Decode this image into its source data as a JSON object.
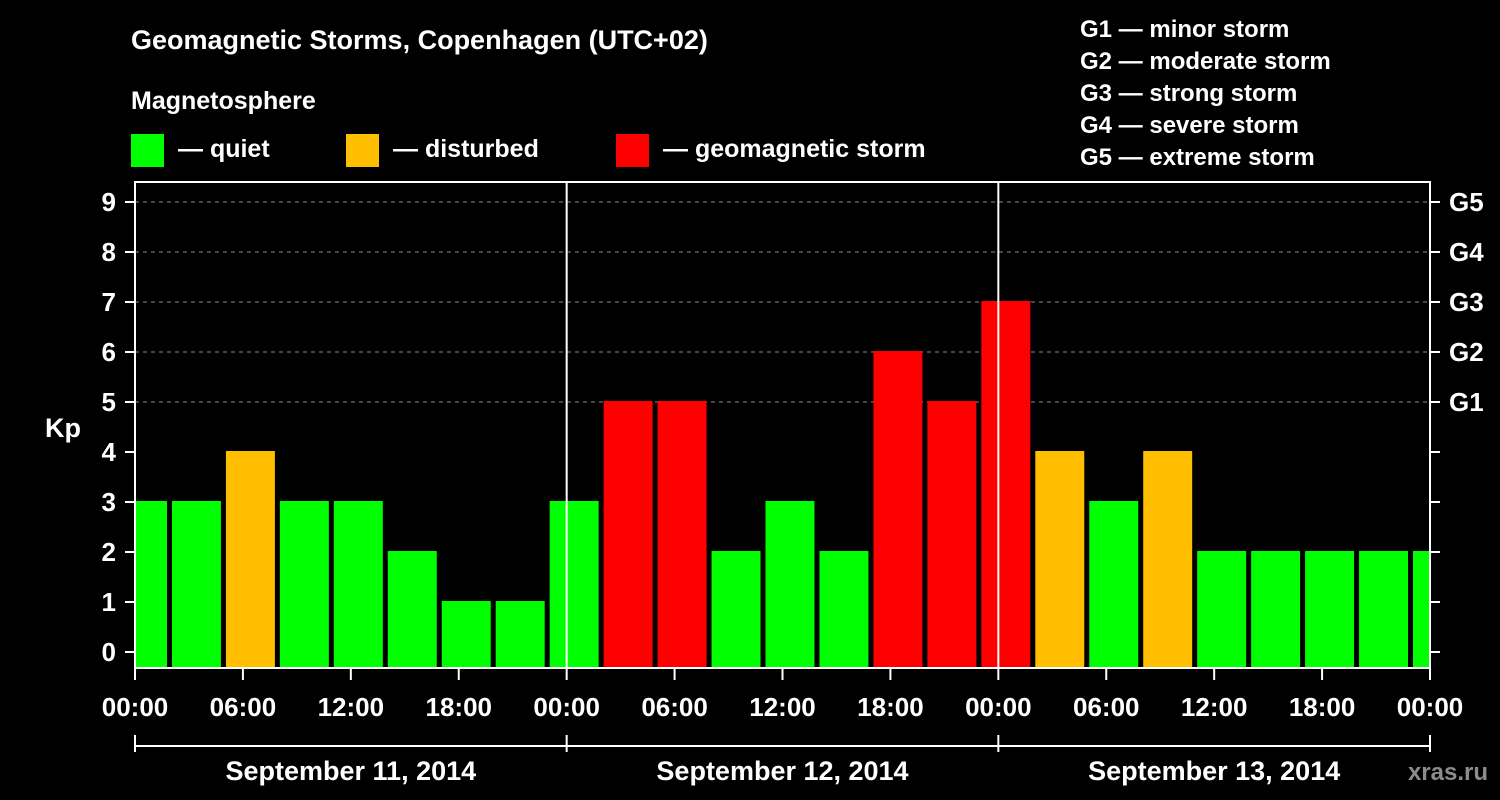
{
  "header": {
    "title": "Geomagnetic Storms, Copenhagen (UTC+02)",
    "subtitle": "Magnetosphere",
    "watermark": "xras.ru"
  },
  "legend": {
    "placement": "top",
    "items": [
      {
        "label": "— quiet",
        "color": "#00ff00"
      },
      {
        "label": "— disturbed",
        "color": "#ffbf00"
      },
      {
        "label": "— geomagnetic storm",
        "color": "#ff0000"
      }
    ]
  },
  "scale": {
    "items": [
      "G1 — minor storm",
      "G2 — moderate storm",
      "G3 — strong storm",
      "G4 — severe storm",
      "G5 — extreme storm"
    ]
  },
  "chart_data": {
    "type": "bar",
    "ylabel": "Kp",
    "ylim": [
      0,
      9
    ],
    "yticks": [
      "0",
      "1",
      "2",
      "3",
      "4",
      "5",
      "6",
      "7",
      "8",
      "9"
    ],
    "right_ticks": [
      {
        "value": 5,
        "label": "G1"
      },
      {
        "value": 6,
        "label": "G2"
      },
      {
        "value": 7,
        "label": "G3"
      },
      {
        "value": 8,
        "label": "G4"
      },
      {
        "value": 9,
        "label": "G5"
      }
    ],
    "grid": "dashed horizontal at 5-9",
    "xlim_hours": [
      0,
      72
    ],
    "xticks": [
      {
        "hour": 0,
        "label": "00:00"
      },
      {
        "hour": 6,
        "label": "06:00"
      },
      {
        "hour": 12,
        "label": "12:00"
      },
      {
        "hour": 18,
        "label": "18:00"
      },
      {
        "hour": 24,
        "label": "00:00"
      },
      {
        "hour": 30,
        "label": "06:00"
      },
      {
        "hour": 36,
        "label": "12:00"
      },
      {
        "hour": 42,
        "label": "18:00"
      },
      {
        "hour": 48,
        "label": "00:00"
      },
      {
        "hour": 54,
        "label": "06:00"
      },
      {
        "hour": 60,
        "label": "12:00"
      },
      {
        "hour": 66,
        "label": "18:00"
      },
      {
        "hour": 72,
        "label": "00:00"
      }
    ],
    "days": [
      {
        "label": "September 11, 2014",
        "start": 0,
        "end": 24
      },
      {
        "label": "September 12, 2014",
        "start": 24,
        "end": 48
      },
      {
        "label": "September 13, 2014",
        "start": 48,
        "end": 72
      }
    ],
    "bars": [
      {
        "start": -1,
        "end": 2,
        "value": 3,
        "status": "quiet"
      },
      {
        "start": 2,
        "end": 5,
        "value": 3,
        "status": "quiet"
      },
      {
        "start": 5,
        "end": 8,
        "value": 4,
        "status": "disturbed"
      },
      {
        "start": 8,
        "end": 11,
        "value": 3,
        "status": "quiet"
      },
      {
        "start": 11,
        "end": 14,
        "value": 3,
        "status": "quiet"
      },
      {
        "start": 14,
        "end": 17,
        "value": 2,
        "status": "quiet"
      },
      {
        "start": 17,
        "end": 20,
        "value": 1,
        "status": "quiet"
      },
      {
        "start": 20,
        "end": 23,
        "value": 1,
        "status": "quiet"
      },
      {
        "start": 23,
        "end": 26,
        "value": 3,
        "status": "quiet"
      },
      {
        "start": 26,
        "end": 29,
        "value": 5,
        "status": "storm"
      },
      {
        "start": 29,
        "end": 32,
        "value": 5,
        "status": "storm"
      },
      {
        "start": 32,
        "end": 35,
        "value": 2,
        "status": "quiet"
      },
      {
        "start": 35,
        "end": 38,
        "value": 3,
        "status": "quiet"
      },
      {
        "start": 38,
        "end": 41,
        "value": 2,
        "status": "quiet"
      },
      {
        "start": 41,
        "end": 44,
        "value": 6,
        "status": "storm"
      },
      {
        "start": 44,
        "end": 47,
        "value": 5,
        "status": "storm"
      },
      {
        "start": 47,
        "end": 50,
        "value": 7,
        "status": "storm"
      },
      {
        "start": 50,
        "end": 53,
        "value": 4,
        "status": "disturbed"
      },
      {
        "start": 53,
        "end": 56,
        "value": 3,
        "status": "quiet"
      },
      {
        "start": 56,
        "end": 59,
        "value": 4,
        "status": "disturbed"
      },
      {
        "start": 59,
        "end": 62,
        "value": 2,
        "status": "quiet"
      },
      {
        "start": 62,
        "end": 65,
        "value": 2,
        "status": "quiet"
      },
      {
        "start": 65,
        "end": 68,
        "value": 2,
        "status": "quiet"
      },
      {
        "start": 68,
        "end": 71,
        "value": 2,
        "status": "quiet"
      },
      {
        "start": 71,
        "end": 74,
        "value": 2,
        "status": "quiet"
      }
    ],
    "status_colors": {
      "quiet": "#00ff00",
      "disturbed": "#ffbf00",
      "storm": "#ff0000"
    }
  }
}
